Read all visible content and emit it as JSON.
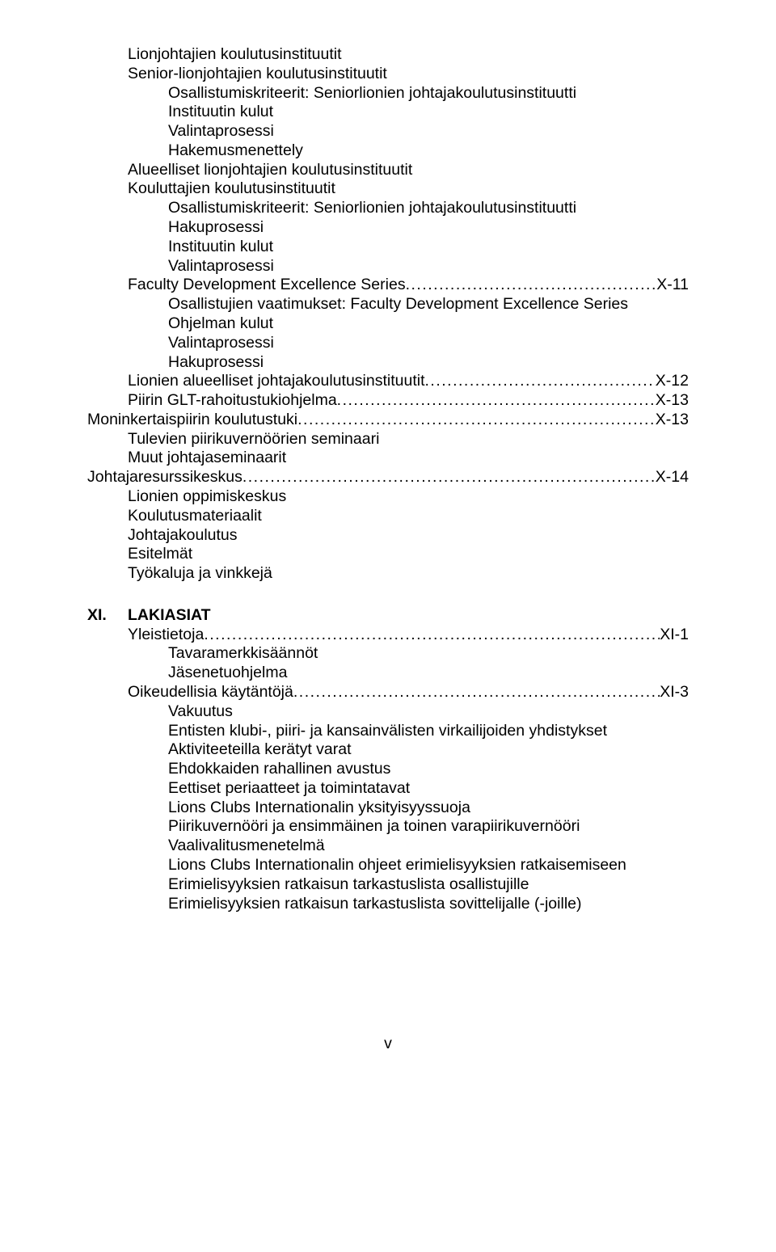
{
  "dots": ".......................................................................................................................................................................................",
  "toc": {
    "ind1_a": [
      "Lionjohtajien koulutusinstituutit",
      "Senior-lionjohtajien koulutusinstituutit"
    ],
    "ind2_a": [
      "Osallistumiskriteerit: Seniorlionien johtajakoulutusinstituutti",
      "Instituutin kulut",
      "Valintaprosessi",
      "Hakemusmenettely"
    ],
    "ind1_b": [
      "Alueelliset lionjohtajien koulutusinstituutit",
      "Kouluttajien koulutusinstituutit"
    ],
    "ind2_b": [
      "Osallistumiskriteerit: Seniorlionien johtajakoulutusinstituutti",
      "Hakuprosessi",
      "Instituutin kulut",
      "Valintaprosessi"
    ],
    "row1": {
      "label": "Faculty Development Excellence Series",
      "page": "X-11"
    },
    "ind2_c": [
      "Osallistujien vaatimukset: Faculty Development Excellence Series",
      "Ohjelman kulut",
      "Valintaprosessi",
      "Hakuprosessi"
    ],
    "row2": {
      "label": "Lionien alueelliset johtajakoulutusinstituutit",
      "page": "X-12"
    },
    "row3": {
      "label": "Piirin GLT-rahoitustukiohjelma",
      "page": "X-13"
    },
    "row4": {
      "label": "Moninkertaispiirin koulutustuki",
      "page": "X-13"
    },
    "ind1_c": [
      "Tulevien piirikuvernöörien seminaari",
      "Muut johtajaseminaarit"
    ],
    "row5": {
      "label": "Johtajaresurssikeskus",
      "page": "X-14"
    },
    "ind1_d": [
      "Lionien oppimiskeskus",
      "Koulutusmateriaalit",
      "Johtajakoulutus",
      "Esitelmät",
      "Työkaluja ja vinkkejä"
    ]
  },
  "section": {
    "num": "XI.",
    "title": "LAKIASIAT",
    "row1": {
      "label": "Yleistietoja",
      "page": "XI-1"
    },
    "ind1_a": [
      "Tavaramerkkisäännöt",
      "Jäsenetuohjelma"
    ],
    "row2": {
      "label": "Oikeudellisia käytäntöjä",
      "page": "XI-3"
    },
    "ind1_b": [
      "Vakuutus",
      "Entisten klubi-, piiri- ja kansainvälisten virkailijoiden yhdistykset",
      "Aktiviteeteilla kerätyt varat",
      "Ehdokkaiden rahallinen avustus",
      "Eettiset periaatteet ja toimintatavat",
      "Lions Clubs Internationalin yksityisyyssuoja",
      "Piirikuvernööri ja ensimmäinen ja toinen varapiirikuvernööri",
      "Vaalivalitusmenetelmä",
      "Lions Clubs Internationalin ohjeet erimielisyyksien ratkaisemiseen",
      "Erimielisyyksien ratkaisun tarkastuslista osallistujille",
      "Erimielisyyksien ratkaisun tarkastuslista sovittelijalle (-joille)"
    ]
  },
  "footer": "v"
}
